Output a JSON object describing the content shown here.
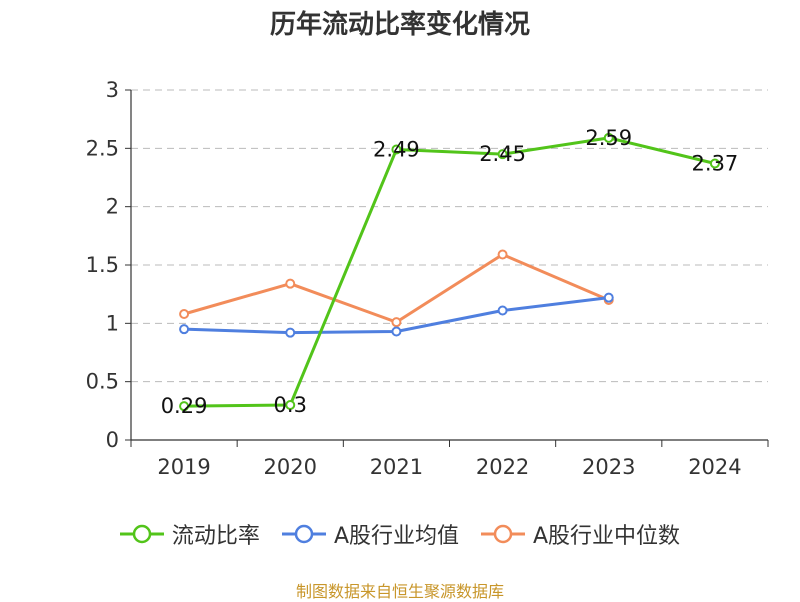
{
  "title": "历年流动比率变化情况",
  "source_note": "制图数据来自恒生聚源数据库",
  "colors": {
    "axis": "#333333",
    "grid": "#bbbbbb",
    "text": "#333333",
    "source": "#c8962a"
  },
  "legend": [
    {
      "label": "流动比率",
      "color": "#52c41a"
    },
    {
      "label": "A股行业均值",
      "color": "#4f7fdf"
    },
    {
      "label": "A股行业中位数",
      "color": "#f28c5a"
    }
  ],
  "chart_data": {
    "type": "line",
    "categories": [
      "2019",
      "2020",
      "2021",
      "2022",
      "2023",
      "2024"
    ],
    "ylim": [
      0,
      3
    ],
    "yticks": [
      "0",
      "0.5",
      "1",
      "1.5",
      "2",
      "2.5",
      "3"
    ],
    "grid": true,
    "legend_position": "bottom",
    "series": [
      {
        "name": "流动比率",
        "color": "#52c41a",
        "values": [
          0.29,
          0.3,
          2.49,
          2.45,
          2.59,
          2.37
        ],
        "labels": [
          "0.29",
          "0.3",
          "2.49",
          "2.45",
          "2.59",
          "2.37"
        ]
      },
      {
        "name": "A股行业均值",
        "color": "#4f7fdf",
        "values": [
          0.95,
          0.92,
          0.93,
          1.11,
          1.22,
          null
        ]
      },
      {
        "name": "A股行业中位数",
        "color": "#f28c5a",
        "values": [
          1.08,
          1.34,
          1.01,
          1.59,
          1.2,
          null
        ]
      }
    ]
  }
}
